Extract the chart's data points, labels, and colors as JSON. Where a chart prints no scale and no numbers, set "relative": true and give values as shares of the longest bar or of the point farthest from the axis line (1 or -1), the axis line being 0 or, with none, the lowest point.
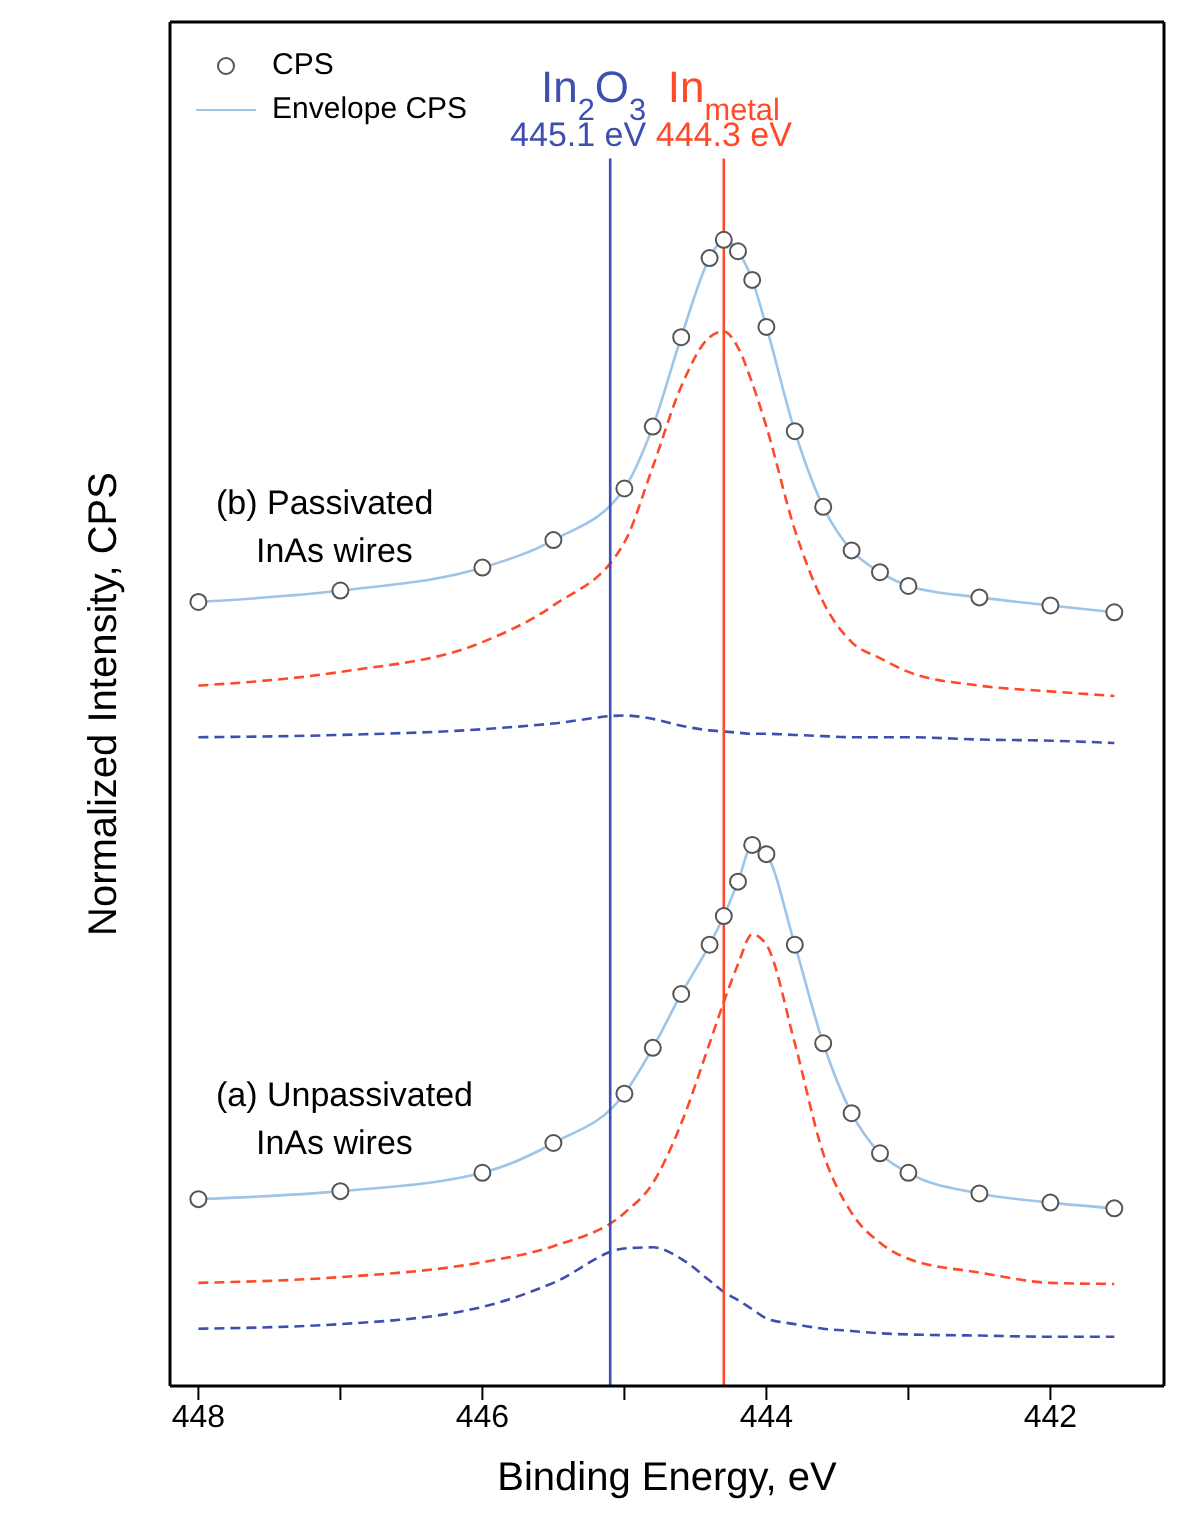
{
  "chart_data": {
    "type": "line",
    "relative": true,
    "xlabel": "Binding Energy, eV",
    "ylabel": "Normalized Intensity, CPS",
    "xlim": [
      448.2,
      441.2
    ],
    "xticks": [
      448,
      {
        "value": 447,
        "label": null
      },
      446,
      {
        "value": 445,
        "label": null
      },
      444,
      {
        "value": 443,
        "label": null
      },
      442
    ],
    "legend": "top left",
    "x": [
      448,
      447,
      446,
      445.5,
      445,
      444.8,
      444.6,
      444.4,
      444.3,
      444.2,
      444.1,
      444,
      443.8,
      443.6,
      443.4,
      443.2,
      443,
      442.5,
      442,
      441.55
    ],
    "series": [
      {
        "name": "CPS",
        "type": "scatter",
        "marker": "circle",
        "color": "#555555",
        "values": [
          0.684,
          0.694,
          0.714,
          0.738,
          0.783,
          0.837,
          0.915,
          0.984,
          1,
          0.99,
          0.965,
          0.924,
          0.833,
          0.767,
          0.729,
          0.71,
          0.698,
          0.688,
          0.681,
          0.675
        ]
      },
      {
        "name": "Envelope CPS",
        "color": "#9ec5e8",
        "values": [
          0.684,
          0.694,
          0.714,
          0.738,
          0.783,
          0.837,
          0.915,
          0.984,
          1,
          0.99,
          0.965,
          0.924,
          0.833,
          0.767,
          0.729,
          0.71,
          0.698,
          0.688,
          0.681,
          0.675
        ]
      },
      {
        "line_style": "dashed",
        "color": "#ff4a2a",
        "values": [
          0.611,
          0.623,
          0.649,
          0.681,
          0.736,
          0.802,
          0.872,
          0.915,
          0.92,
          0.906,
          0.875,
          0.837,
          0.747,
          0.684,
          0.649,
          0.635,
          0.623,
          0.611,
          0.606,
          0.602
        ]
      },
      {
        "line_style": "dashed",
        "color": "#3f4fb0",
        "values": [
          0.566,
          0.568,
          0.573,
          0.578,
          0.585,
          0.582,
          0.576,
          0.572,
          0.571,
          0.57,
          0.569,
          0.569,
          0.568,
          0.567,
          0.566,
          0.566,
          0.566,
          0.564,
          0.563,
          0.561
        ]
      },
      {
        "type": "scatter",
        "marker": "circle",
        "color": "#555555",
        "values": [
          0.163,
          0.17,
          0.186,
          0.212,
          0.255,
          0.295,
          0.342,
          0.385,
          0.41,
          0.44,
          0.472,
          0.464,
          0.385,
          0.299,
          0.238,
          0.203,
          0.186,
          0.168,
          0.16,
          0.155
        ]
      },
      {
        "color": "#9ec5e8",
        "values": [
          0.163,
          0.17,
          0.186,
          0.212,
          0.255,
          0.295,
          0.342,
          0.385,
          0.41,
          0.44,
          0.472,
          0.464,
          0.385,
          0.299,
          0.238,
          0.203,
          0.186,
          0.168,
          0.16,
          0.155
        ]
      },
      {
        "line_style": "dashed",
        "color": "#ff4a2a",
        "values": [
          0.09,
          0.095,
          0.108,
          0.122,
          0.151,
          0.177,
          0.229,
          0.299,
          0.335,
          0.368,
          0.394,
          0.385,
          0.299,
          0.203,
          0.151,
          0.125,
          0.111,
          0.099,
          0.09,
          0.089
        ]
      },
      {
        "line_style": "dashed",
        "color": "#3f4fb0",
        "values": [
          0.05,
          0.054,
          0.069,
          0.09,
          0.12,
          0.121,
          0.111,
          0.092,
          0.082,
          0.075,
          0.067,
          0.059,
          0.054,
          0.05,
          0.048,
          0.046,
          0.045,
          0.044,
          0.043,
          0.043
        ]
      }
    ],
    "ref_lines": [
      {
        "axis": "x",
        "value": 444.3,
        "label": "In$_{metal}$\n444.3 eV",
        "color": "#ff4a2a"
      },
      {
        "axis": "x",
        "value": 445.1,
        "label": "In$_{2}$O$_{3}$\n445.1 eV",
        "color": "#3f4fb0"
      }
    ],
    "annotations": [
      "(b) Passivated\nInAs wires",
      "(a) Unpassivated\nInAs wires"
    ]
  }
}
